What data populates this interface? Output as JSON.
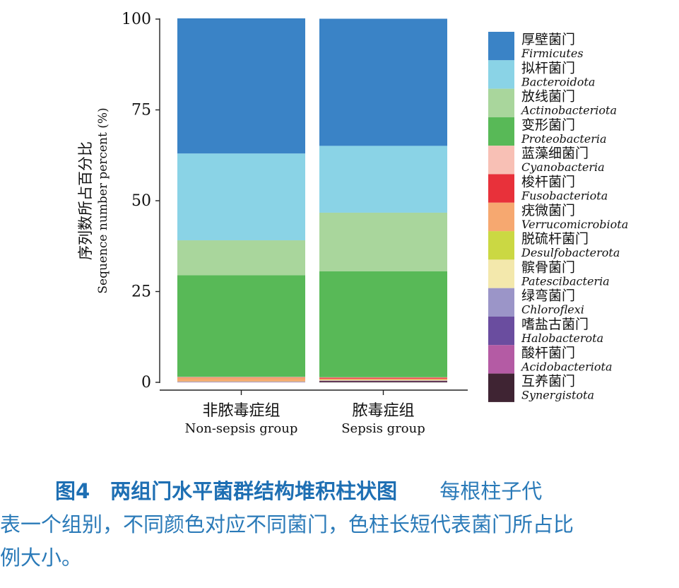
{
  "chart_data": {
    "type": "bar",
    "stacked": true,
    "ylim": [
      0,
      100
    ],
    "yticks": [
      0,
      25,
      50,
      75,
      100
    ],
    "ylabel_cn": "序列数所占百分比",
    "ylabel_en": "Sequence number percent (%)",
    "categories": [
      {
        "cn": "非脓毒症组",
        "en": "Non-sepsis group"
      },
      {
        "cn": "脓毒症组",
        "en": "Sepsis group"
      }
    ],
    "series": [
      {
        "name_cn": "厚壁菌门",
        "name_en": "Firmicutes",
        "color": "#3a83c6",
        "values": [
          37.2,
          35.0
        ]
      },
      {
        "name_cn": "拟杆菌门",
        "name_en": "Bacteroidota",
        "color": "#8ad3e6",
        "values": [
          23.9,
          18.4
        ]
      },
      {
        "name_cn": "放线菌门",
        "name_en": "Actinobacteriota",
        "color": "#a9d69c",
        "values": [
          9.6,
          16.1
        ]
      },
      {
        "name_cn": "变形菌门",
        "name_en": "Proteobacteria",
        "color": "#58b957",
        "values": [
          28.0,
          29.2
        ]
      },
      {
        "name_cn": "蓝藻细菌门",
        "name_en": "Cyanobacteria",
        "color": "#f8c0b5",
        "values": [
          0.1,
          0.1
        ]
      },
      {
        "name_cn": "梭杆菌门",
        "name_en": "Fusobacteriota",
        "color": "#e8313a",
        "values": [
          0.1,
          0.3
        ]
      },
      {
        "name_cn": "疣微菌门",
        "name_en": "Verrucomicrobiota",
        "color": "#f6a870",
        "values": [
          1.0,
          0.3
        ]
      },
      {
        "name_cn": "脱硫杆菌门",
        "name_en": "Desulfobacterota",
        "color": "#cbd843",
        "values": [
          0.05,
          0.1
        ]
      },
      {
        "name_cn": "髌骨菌门",
        "name_en": "Patescibacteria",
        "color": "#f3e8ac",
        "values": [
          0.05,
          0.1
        ]
      },
      {
        "name_cn": "绿弯菌门",
        "name_en": "Chloroflexi",
        "color": "#9b95c8",
        "values": [
          0.05,
          0.05
        ]
      },
      {
        "name_cn": "嗜盐古菌门",
        "name_en": "Halobacterota",
        "color": "#6a4d9f",
        "values": [
          0.05,
          0.05
        ]
      },
      {
        "name_cn": "酸杆菌门",
        "name_en": "Acidobacteriota",
        "color": "#b45ba4",
        "values": [
          0.05,
          0.1
        ]
      },
      {
        "name_cn": "互养菌门",
        "name_en": "Synergistota",
        "color": "#3f2433",
        "values": [
          0.05,
          0.3
        ]
      }
    ]
  },
  "caption": {
    "title": "图4　两组门水平菌群结构堆积柱状图",
    "line1_rest": "每根柱子代",
    "line2": "表一个组别，不同颜色对应不同菌门，色柱长短代表菌门所占比",
    "line3": "例大小。"
  }
}
